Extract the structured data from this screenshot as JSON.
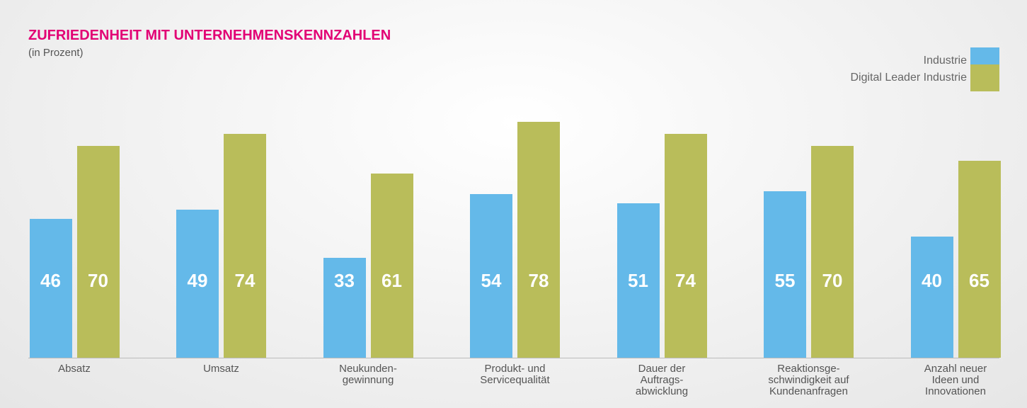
{
  "chart_data": {
    "type": "bar",
    "title": "ZUFRIEDENHEIT MIT UNTERNEHMENSKENNZAHLEN",
    "subtitle": "(in Prozent)",
    "categories": [
      "Absatz",
      "Umsatz",
      "Neukunden-\ngewinnung",
      "Produkt- und\nServicequalität",
      "Dauer der\nAuftrags-\nabwicklung",
      "Reaktionsge-\nschwindigkeit auf\nKundenanfragen",
      "Anzahl neuer\nIdeen und\nInnovationen"
    ],
    "series": [
      {
        "name": "Industrie",
        "color": "#64b9e9",
        "values": [
          46,
          49,
          33,
          54,
          51,
          55,
          40
        ]
      },
      {
        "name": "Digital Leader Industrie",
        "color": "#b9bd5a",
        "values": [
          70,
          74,
          61,
          78,
          74,
          70,
          65
        ]
      }
    ]
  }
}
